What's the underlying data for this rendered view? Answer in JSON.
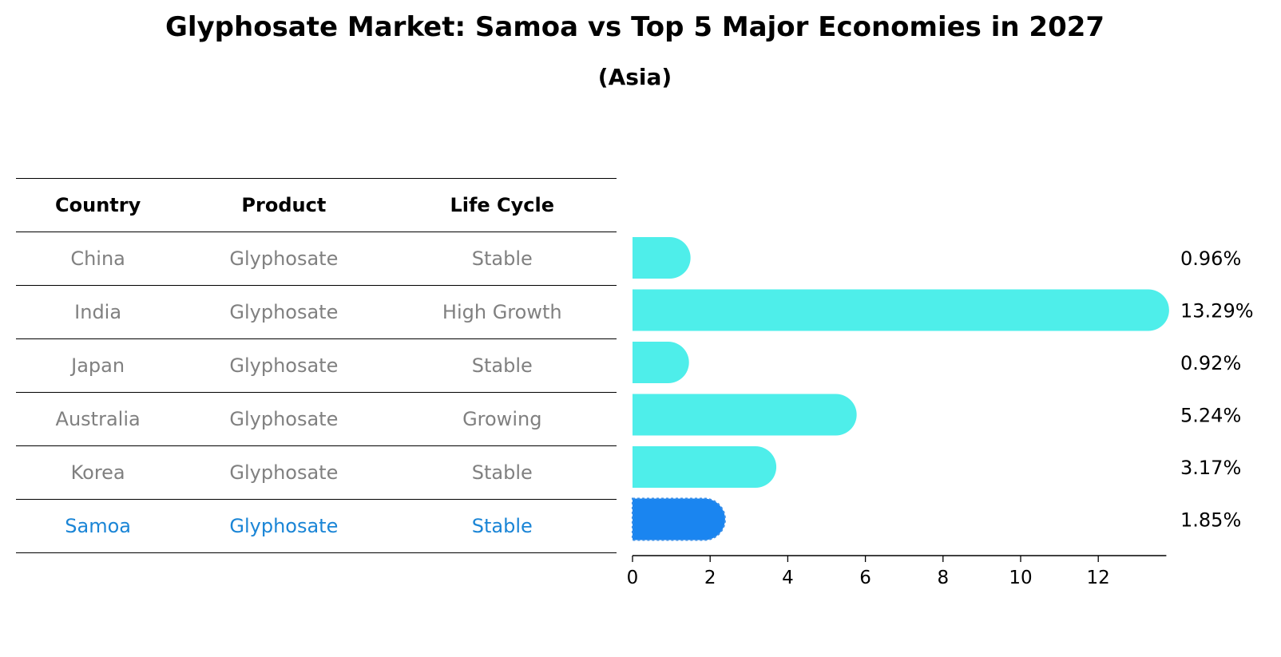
{
  "header": {
    "title": "Glyphosate Market: Samoa vs Top 5 Major Economies in 2027",
    "subtitle": "(Asia)"
  },
  "table": {
    "columns": [
      "Country",
      "Product",
      "Life Cycle"
    ],
    "rows": [
      {
        "country": "China",
        "product": "Glyphosate",
        "life_cycle": "Stable"
      },
      {
        "country": "India",
        "product": "Glyphosate",
        "life_cycle": "High Growth"
      },
      {
        "country": "Japan",
        "product": "Glyphosate",
        "life_cycle": "Stable"
      },
      {
        "country": "Australia",
        "product": "Glyphosate",
        "life_cycle": "Growing"
      },
      {
        "country": "Korea",
        "product": "Glyphosate",
        "life_cycle": "Stable"
      },
      {
        "country": "Samoa",
        "product": "Glyphosate",
        "life_cycle": "Stable"
      }
    ]
  },
  "colors": {
    "bar": "#4eeeea",
    "highlight_bar": "#1a85f0",
    "highlight_text": "#1a85d6",
    "row_text": "#808080"
  },
  "chart_data": {
    "type": "bar",
    "orientation": "horizontal",
    "categories": [
      "China",
      "India",
      "Japan",
      "Australia",
      "Korea",
      "Samoa"
    ],
    "values": [
      0.96,
      13.29,
      0.92,
      5.24,
      3.17,
      1.85
    ],
    "value_labels": [
      "0.96%",
      "13.29%",
      "0.92%",
      "5.24%",
      "3.17%",
      "1.85%"
    ],
    "highlight": "Samoa",
    "xlim": [
      0,
      14
    ],
    "xticks": [
      0,
      2,
      4,
      6,
      8,
      10,
      12
    ],
    "xlabel": "",
    "ylabel": ""
  }
}
